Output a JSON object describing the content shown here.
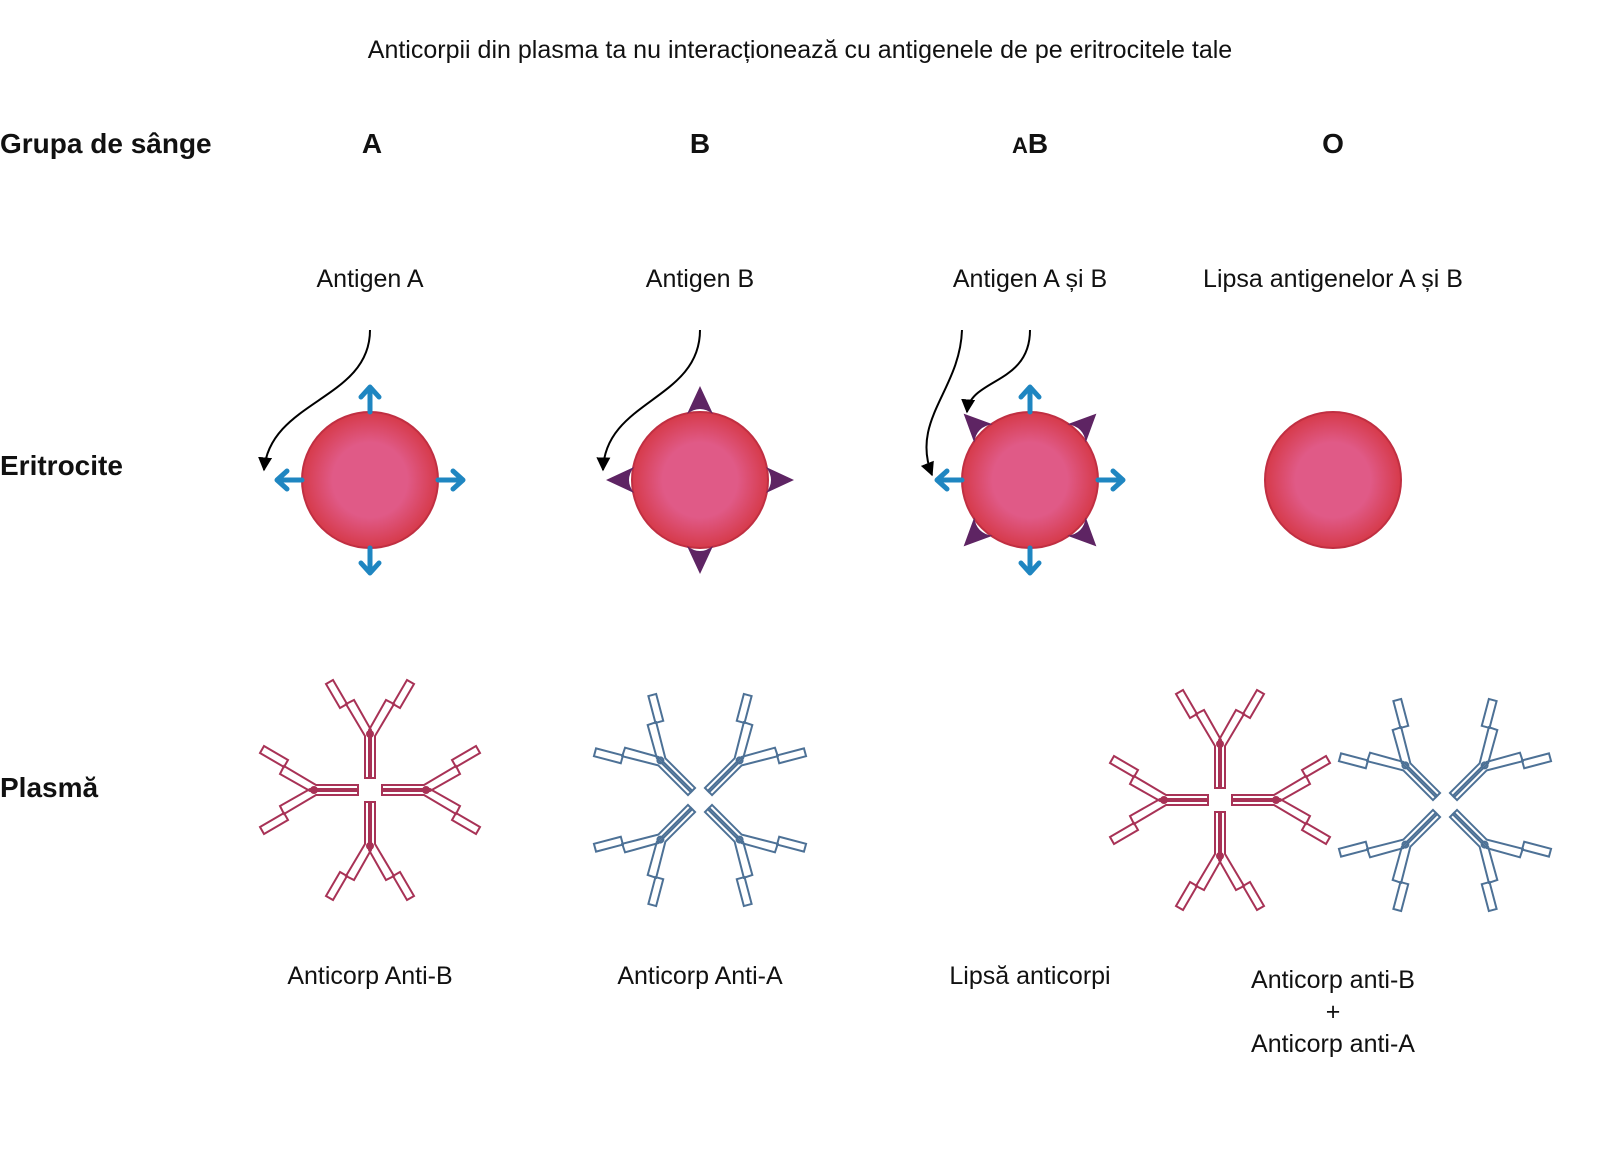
{
  "title": "Anticorpii din plasma ta nu interacționează cu antigenele de pe eritrocitele tale",
  "row_labels": {
    "blood_group": "Grupa de sânge",
    "erythrocytes": "Eritrocite",
    "plasma": "Plasmă"
  },
  "columns": [
    {
      "group": "A",
      "antigen": "Antigen A",
      "antibody": "Anticorp Anti-B"
    },
    {
      "group": "B",
      "antigen": "Antigen B",
      "antibody": "Anticorp Anti-A"
    },
    {
      "group_prefix": "A",
      "group_suffix": "B",
      "antigen": "Antigen A și B",
      "antibody": "Lipsă anticorpi"
    },
    {
      "group": "O",
      "antigen": "Lipsa antigenelor A și B",
      "antibody_lines": [
        "Anticorp anti-B",
        "+",
        "Anticorp anti-A"
      ]
    }
  ],
  "colors": {
    "cell_outer": "#d63a4a",
    "cell_inner": "#e05a87",
    "antigen_a": "#1f86c1",
    "antigen_b": "#5e2463",
    "antibody_anti_b": "#a83256",
    "antibody_anti_a": "#4d7196",
    "arrow": "#000000"
  }
}
